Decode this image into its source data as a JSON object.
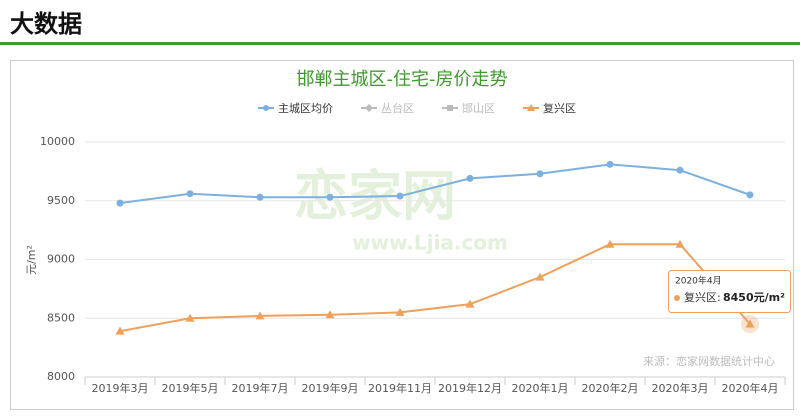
{
  "header": {
    "title": "大数据"
  },
  "chart_data": {
    "type": "line",
    "title": "邯郸主城区-住宅-房价走势",
    "y_label": "元/m²",
    "categories": [
      "2019年3月",
      "2019年5月",
      "2019年7月",
      "2019年9月",
      "2019年11月",
      "2019年12月",
      "2020年1月",
      "2020年2月",
      "2020年3月",
      "2020年4月"
    ],
    "series": [
      {
        "name": "主城区均价",
        "color": "#7cb0de",
        "marker": "circle",
        "values": [
          9480,
          9560,
          9530,
          9530,
          9540,
          9690,
          9730,
          9810,
          9760,
          9550
        ]
      },
      {
        "name": "复兴区",
        "color": "#f0a05a",
        "marker": "triangle",
        "values": [
          8390,
          8500,
          8520,
          8530,
          8550,
          8620,
          8850,
          9130,
          9130,
          8450
        ]
      }
    ],
    "inactive_series": [
      "丛台区",
      "邯山区"
    ],
    "inactive_color": "#bbbbbb",
    "ylim": [
      8000,
      10000
    ],
    "yticks": [
      8000,
      8500,
      9000,
      9500,
      10000
    ],
    "grid": true,
    "tooltip": {
      "title": "2020年4月",
      "series": "复兴区:",
      "value": "8450元/m²"
    },
    "source": "来源：恋家网数据统计中心",
    "watermark": [
      "恋家网",
      "www.Ljia.com"
    ]
  }
}
